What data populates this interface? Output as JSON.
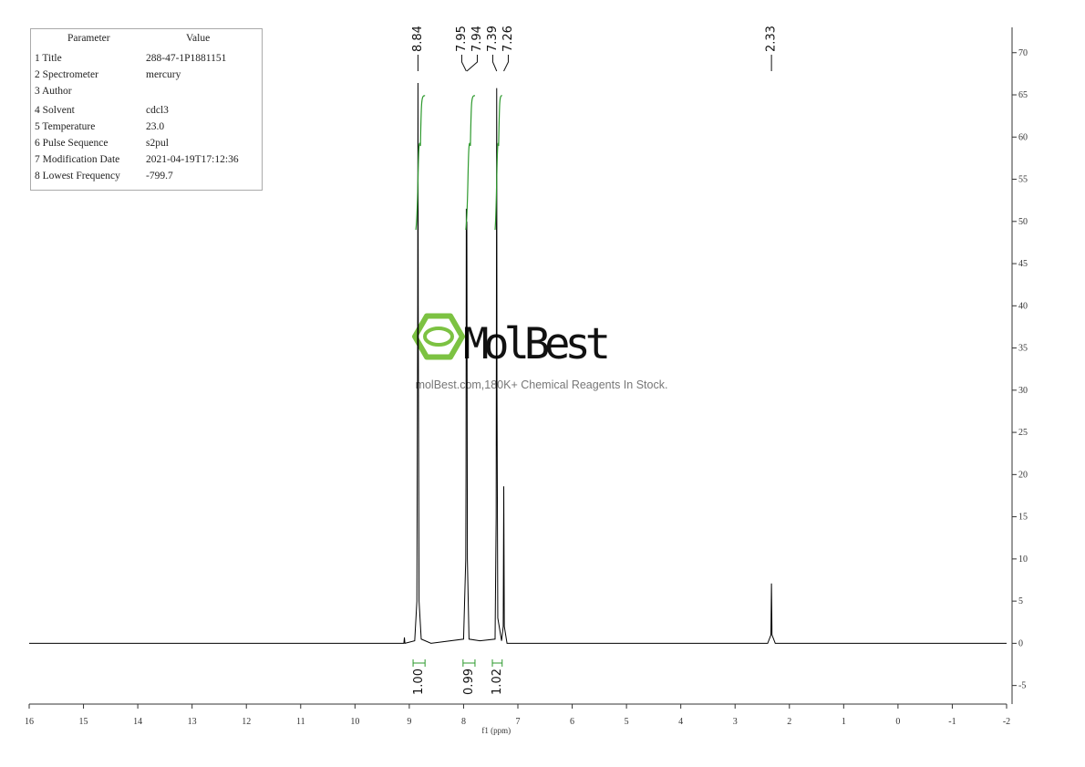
{
  "chart_data": {
    "type": "line",
    "xlabel": "f1 (ppm)",
    "color": "#000000",
    "x": [
      16,
      9.2,
      9.1,
      9.09,
      9.08,
      8.9,
      8.86,
      8.845,
      8.84,
      8.835,
      8.82,
      8.78,
      8.6,
      8.0,
      7.96,
      7.955,
      7.95,
      7.945,
      7.94,
      7.93,
      7.9,
      7.7,
      7.42,
      7.4,
      7.39,
      7.385,
      7.37,
      7.3,
      7.27,
      7.26,
      7.25,
      7.2,
      2.4,
      2.34,
      2.33,
      2.32,
      2.26,
      -2
    ],
    "values": [
      0,
      0,
      0,
      0.7,
      0,
      0.3,
      5,
      40,
      66.4,
      40,
      5,
      0.5,
      0,
      0.5,
      10,
      20,
      51.5,
      45,
      50,
      10,
      0.5,
      0.3,
      0.5,
      15,
      65.8,
      30,
      3,
      0.3,
      2,
      18.6,
      2,
      0,
      0,
      1,
      7.1,
      1,
      0,
      0
    ],
    "xlim": [
      16,
      -2
    ],
    "xticks": [
      16,
      15,
      14,
      13,
      12,
      11,
      10,
      9,
      8,
      7,
      6,
      5,
      4,
      3,
      2,
      1,
      0,
      -1,
      -2
    ],
    "ylim": [
      -7.2,
      73
    ],
    "yticks": [
      -5,
      0,
      5,
      10,
      15,
      20,
      25,
      30,
      35,
      40,
      45,
      50,
      55,
      60,
      65,
      70
    ],
    "peak_labels": [
      8.84,
      7.95,
      7.94,
      7.39,
      7.26,
      2.33
    ],
    "integrals": {
      "ranges": [
        [
          8.93,
          8.71
        ],
        [
          8.01,
          7.79
        ],
        [
          7.47,
          7.29
        ]
      ],
      "values": [
        1,
        0.99,
        1.02
      ],
      "value_labels": [
        "1.00",
        "0.99",
        "1.02"
      ],
      "color": "#2e9a2e"
    }
  },
  "parameters": {
    "header": [
      "Parameter",
      "Value"
    ],
    "rows": [
      [
        "1 Title",
        "288-47-1P1881151"
      ],
      [
        "2 Spectrometer",
        "mercury"
      ],
      [
        "3 Author"
      ],
      [
        "4 Solvent",
        "cdcl3"
      ],
      [
        "5 Temperature",
        "23.0"
      ],
      [
        "6 Pulse Sequence",
        "s2pul"
      ],
      [
        "7 Modification Date",
        "2021-04-19T17:12:36"
      ],
      [
        "8 Lowest Frequency",
        "-799.7"
      ]
    ]
  },
  "watermark": {
    "brand": "MolBest",
    "tagline": "molBest.com,180K+ Chemical Reagents In Stock."
  }
}
